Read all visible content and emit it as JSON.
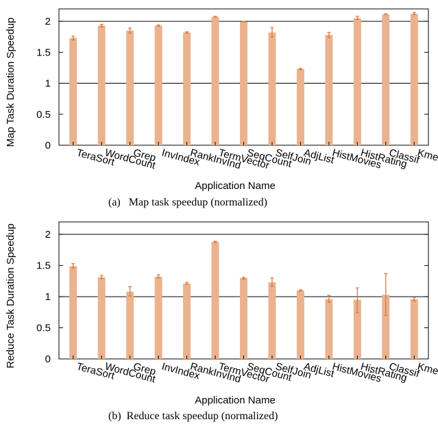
{
  "colors": {
    "bar": "#eab38e",
    "error": "#d9793b",
    "axis": "#000000"
  },
  "chart_data": [
    {
      "type": "bar",
      "caption": "(a)   Map task speedup (normalized)",
      "xlabel": "Application Name",
      "ylabel": "Map Task Duration Speedup",
      "ylim": [
        0,
        2.2
      ],
      "yticks": [
        "0",
        "0.5",
        "1",
        "1.5",
        "2"
      ],
      "reference_lines": [
        1,
        2
      ],
      "grid": false,
      "categories": [
        "TeraSort",
        "WordCount",
        "Grep",
        "InvIndex",
        "RankInvInd",
        "TermVector",
        "SeqCount",
        "SelfJoin",
        "AdjList",
        "HistMovies",
        "HistRating",
        "Classif",
        "Kmeans"
      ],
      "values": [
        1.73,
        1.93,
        1.85,
        1.93,
        1.82,
        2.07,
        1.99,
        1.82,
        1.23,
        1.78,
        2.05,
        2.11,
        2.12
      ],
      "error_low": [
        1.7,
        1.91,
        1.81,
        1.92,
        1.81,
        2.07,
        1.99,
        1.75,
        1.22,
        1.74,
        2.03,
        2.11,
        2.11
      ],
      "error_high": [
        1.76,
        1.95,
        1.89,
        1.94,
        1.83,
        2.08,
        2.0,
        1.9,
        1.24,
        1.82,
        2.08,
        2.12,
        2.14
      ]
    },
    {
      "type": "bar",
      "caption": "(b)  Reduce task speedup (normalized)",
      "xlabel": "Application Name",
      "ylabel": "Reduce Task Duration Speedup",
      "ylim": [
        0,
        2.2
      ],
      "yticks": [
        "0",
        "0.5",
        "1",
        "1.5",
        "2"
      ],
      "reference_lines": [
        1,
        2
      ],
      "grid": false,
      "categories": [
        "TeraSort",
        "WordCount",
        "Grep",
        "InvIndex",
        "RankInvInd",
        "TermVector",
        "SeqCount",
        "SelfJoin",
        "AdjList",
        "HistMovies",
        "HistRating",
        "Classif",
        "Kmeans"
      ],
      "values": [
        1.49,
        1.31,
        1.08,
        1.32,
        1.21,
        1.88,
        1.3,
        1.23,
        1.1,
        0.96,
        0.95,
        1.03,
        0.96
      ],
      "error_low": [
        1.46,
        1.29,
        1.01,
        1.3,
        1.2,
        1.87,
        1.28,
        1.17,
        1.09,
        0.91,
        0.74,
        0.7,
        0.93
      ],
      "error_high": [
        1.53,
        1.34,
        1.16,
        1.35,
        1.23,
        1.89,
        1.31,
        1.3,
        1.11,
        1.02,
        1.14,
        1.37,
        0.99
      ]
    }
  ]
}
